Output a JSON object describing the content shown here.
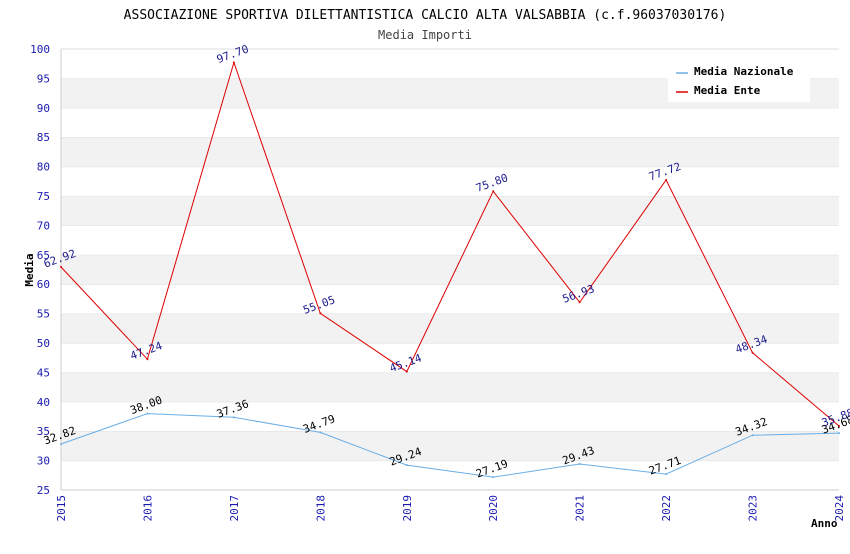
{
  "chart_data": {
    "type": "line",
    "title": "ASSOCIAZIONE SPORTIVA DILETTANTISTICA CALCIO ALTA VALSABBIA (c.f.96037030176)",
    "subtitle": "Media Importi",
    "xlabel": "Anno",
    "ylabel": "Media",
    "x": [
      "2015",
      "2016",
      "2017",
      "2018",
      "2019",
      "2020",
      "2021",
      "2022",
      "2023",
      "2024"
    ],
    "ylim": [
      25,
      100
    ],
    "ytick_step": 5,
    "grid": "horizontal alternating bands",
    "legend_position": "top-right",
    "series": [
      {
        "name": "Media Nazionale",
        "color": "#6aaee6",
        "values": [
          32.82,
          38.0,
          37.36,
          34.79,
          29.24,
          27.19,
          29.43,
          27.71,
          34.32,
          34.68
        ],
        "labels": [
          "32.82",
          "38.00",
          "37.36",
          "34.79",
          "29.24",
          "27.19",
          "29.43",
          "27.71",
          "34.32",
          "34.68"
        ]
      },
      {
        "name": "Media Ente",
        "color": "#dd0000",
        "values": [
          62.92,
          47.24,
          97.7,
          55.05,
          45.14,
          75.8,
          56.93,
          77.72,
          48.34,
          35.88
        ],
        "labels": [
          "62.92",
          "47.24",
          "97.70",
          "55.05",
          "45.14",
          "75.80",
          "56.93",
          "77.72",
          "48.34",
          "35.88"
        ]
      }
    ]
  }
}
